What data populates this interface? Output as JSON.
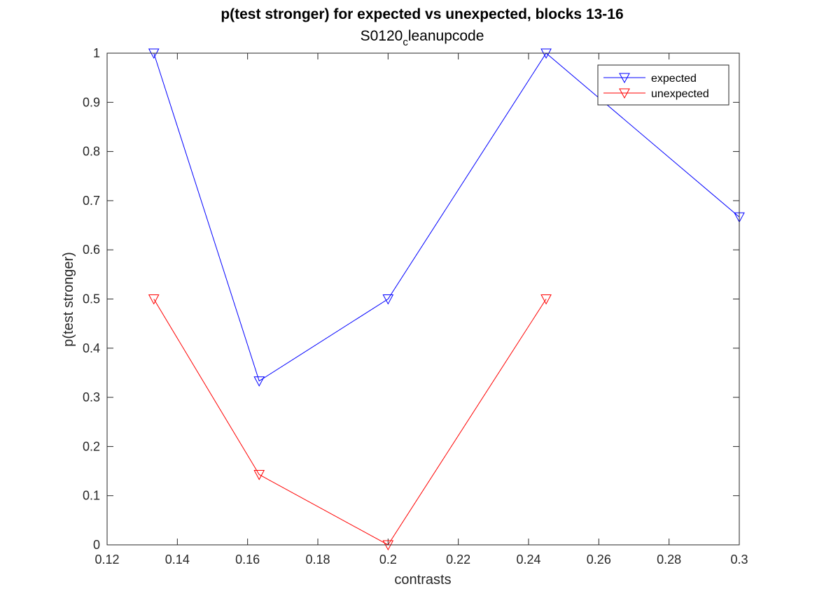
{
  "chart_data": {
    "type": "line",
    "title": "p(test stronger) for expected vs unexpected, blocks 13-16",
    "subtitle_main": "S0120",
    "subtitle_sub": "c",
    "subtitle_rest": "leanupcode",
    "xlabel": "contrasts",
    "ylabel": "p(test stronger)",
    "xlim": [
      0.12,
      0.3
    ],
    "ylim": [
      0,
      1
    ],
    "xticks": [
      0.12,
      0.14,
      0.16,
      0.18,
      0.2,
      0.22,
      0.24,
      0.26,
      0.28,
      0.3
    ],
    "xtick_labels": [
      "0.12",
      "0.14",
      "0.16",
      "0.18",
      "0.2",
      "0.22",
      "0.24",
      "0.26",
      "0.28",
      "0.3"
    ],
    "yticks": [
      0,
      0.1,
      0.2,
      0.3,
      0.4,
      0.5,
      0.6,
      0.7,
      0.8,
      0.9,
      1
    ],
    "ytick_labels": [
      "0",
      "0.1",
      "0.2",
      "0.3",
      "0.4",
      "0.5",
      "0.6",
      "0.7",
      "0.8",
      "0.9",
      "1"
    ],
    "grid": false,
    "legend_position": "top-right",
    "marker": "downward-triangle",
    "series": [
      {
        "name": "expected",
        "color": "#0000ff",
        "x": [
          0.1333,
          0.1633,
          0.2,
          0.245,
          0.3
        ],
        "y": [
          1.0,
          0.3333,
          0.5,
          1.0,
          0.6667
        ]
      },
      {
        "name": "unexpected",
        "color": "#ff0000",
        "x": [
          0.1333,
          0.1633,
          0.2,
          0.245
        ],
        "y": [
          0.5,
          0.1429,
          0.0,
          0.5
        ]
      }
    ]
  }
}
